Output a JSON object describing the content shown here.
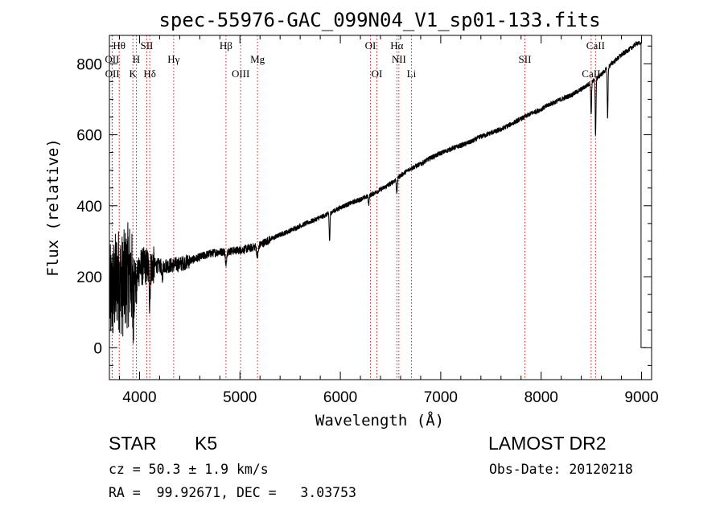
{
  "chart_data": {
    "type": "line",
    "title": "spec-55976-GAC_099N04_V1_sp01-133.fits",
    "xlabel": "Wavelength (Å)",
    "ylabel": "Flux (relative)",
    "xlim": [
      3700,
      9100
    ],
    "ylim": [
      -90,
      880
    ],
    "x_ticks": [
      4000,
      5000,
      6000,
      7000,
      8000,
      9000
    ],
    "y_ticks": [
      0,
      200,
      400,
      600,
      800
    ],
    "grid": false,
    "line_color": "#000000",
    "marker_color": "#b22222",
    "spectrum_anchors": [
      [
        3705,
        140
      ],
      [
        3740,
        160
      ],
      [
        3780,
        200
      ],
      [
        3830,
        175
      ],
      [
        3870,
        200
      ],
      [
        3920,
        215
      ],
      [
        3950,
        220
      ],
      [
        4000,
        225
      ],
      [
        4050,
        230
      ],
      [
        4100,
        228
      ],
      [
        4150,
        232
      ],
      [
        4200,
        230
      ],
      [
        4300,
        232
      ],
      [
        4400,
        235
      ],
      [
        4500,
        245
      ],
      [
        4600,
        255
      ],
      [
        4700,
        265
      ],
      [
        4800,
        270
      ],
      [
        4900,
        272
      ],
      [
        5000,
        275
      ],
      [
        5100,
        280
      ],
      [
        5200,
        290
      ],
      [
        5300,
        305
      ],
      [
        5400,
        318
      ],
      [
        5500,
        330
      ],
      [
        5600,
        343
      ],
      [
        5700,
        355
      ],
      [
        5800,
        367
      ],
      [
        5900,
        380
      ],
      [
        6000,
        395
      ],
      [
        6100,
        407
      ],
      [
        6200,
        418
      ],
      [
        6300,
        430
      ],
      [
        6400,
        445
      ],
      [
        6500,
        462
      ],
      [
        6600,
        485
      ],
      [
        6700,
        505
      ],
      [
        6800,
        518
      ],
      [
        6900,
        535
      ],
      [
        7000,
        548
      ],
      [
        7100,
        560
      ],
      [
        7200,
        570
      ],
      [
        7300,
        580
      ],
      [
        7400,
        595
      ],
      [
        7500,
        605
      ],
      [
        7600,
        615
      ],
      [
        7700,
        630
      ],
      [
        7800,
        645
      ],
      [
        7900,
        660
      ],
      [
        8000,
        672
      ],
      [
        8100,
        688
      ],
      [
        8200,
        700
      ],
      [
        8300,
        712
      ],
      [
        8400,
        728
      ],
      [
        8500,
        748
      ],
      [
        8600,
        770
      ],
      [
        8700,
        800
      ],
      [
        8800,
        825
      ],
      [
        8900,
        845
      ],
      [
        8960,
        860
      ],
      [
        8985,
        855
      ]
    ],
    "absorption_features": [
      {
        "center": 3933,
        "depth": 110,
        "width": 6
      },
      {
        "center": 3968,
        "depth": 70,
        "width": 6
      },
      {
        "center": 4101,
        "depth": 90,
        "width": 5
      },
      {
        "center": 4226,
        "depth": 40,
        "width": 5
      },
      {
        "center": 4861,
        "depth": 45,
        "width": 5
      },
      {
        "center": 5175,
        "depth": 30,
        "width": 8
      },
      {
        "center": 5893,
        "depth": 80,
        "width": 4
      },
      {
        "center": 6282,
        "depth": 25,
        "width": 4
      },
      {
        "center": 6563,
        "depth": 40,
        "width": 5
      },
      {
        "center": 8498,
        "depth": 90,
        "width": 4
      },
      {
        "center": 8542,
        "depth": 160,
        "width": 4
      },
      {
        "center": 8662,
        "depth": 140,
        "width": 4
      }
    ],
    "edge_artifact": {
      "x": 8995,
      "from": 860,
      "to": 0
    },
    "lines": [
      {
        "name": "Hθ",
        "x": 3798,
        "row": 0
      },
      {
        "name": "OII",
        "x": 3727,
        "row": 1
      },
      {
        "name": "OII",
        "x": 3729,
        "row": 2
      },
      {
        "name": "SII",
        "x": 4072,
        "row": 0
      },
      {
        "name": "H",
        "x": 3968,
        "row": 1
      },
      {
        "name": "K",
        "x": 3934,
        "row": 2
      },
      {
        "name": "Hδ",
        "x": 4102,
        "row": 2
      },
      {
        "name": "Hγ",
        "x": 4340,
        "row": 1
      },
      {
        "name": "Hβ",
        "x": 4861,
        "row": 0
      },
      {
        "name": "Mg",
        "x": 5175,
        "row": 1
      },
      {
        "name": "OIII",
        "x": 5007,
        "row": 2
      },
      {
        "name": "OI",
        "x": 6300,
        "row": 0
      },
      {
        "name": "OI",
        "x": 6364,
        "row": 2
      },
      {
        "name": "Hα",
        "x": 6563,
        "row": 0
      },
      {
        "name": "NII",
        "x": 6583,
        "row": 1
      },
      {
        "name": "Li",
        "x": 6708,
        "row": 2
      },
      {
        "name": "SII",
        "x": 7838,
        "row": 1
      },
      {
        "name": "CaII",
        "x": 8542,
        "row": 0
      },
      {
        "name": "CaII",
        "x": 8498,
        "row": 2
      }
    ]
  },
  "info": {
    "class": "STAR",
    "subclass": "K5",
    "survey": "LAMOST DR2",
    "cz": "cz = 50.3 ± 1.9 km/s",
    "obsdate": "Obs-Date: 20120218",
    "radec": "RA =  99.92671, DEC =   3.03753"
  }
}
